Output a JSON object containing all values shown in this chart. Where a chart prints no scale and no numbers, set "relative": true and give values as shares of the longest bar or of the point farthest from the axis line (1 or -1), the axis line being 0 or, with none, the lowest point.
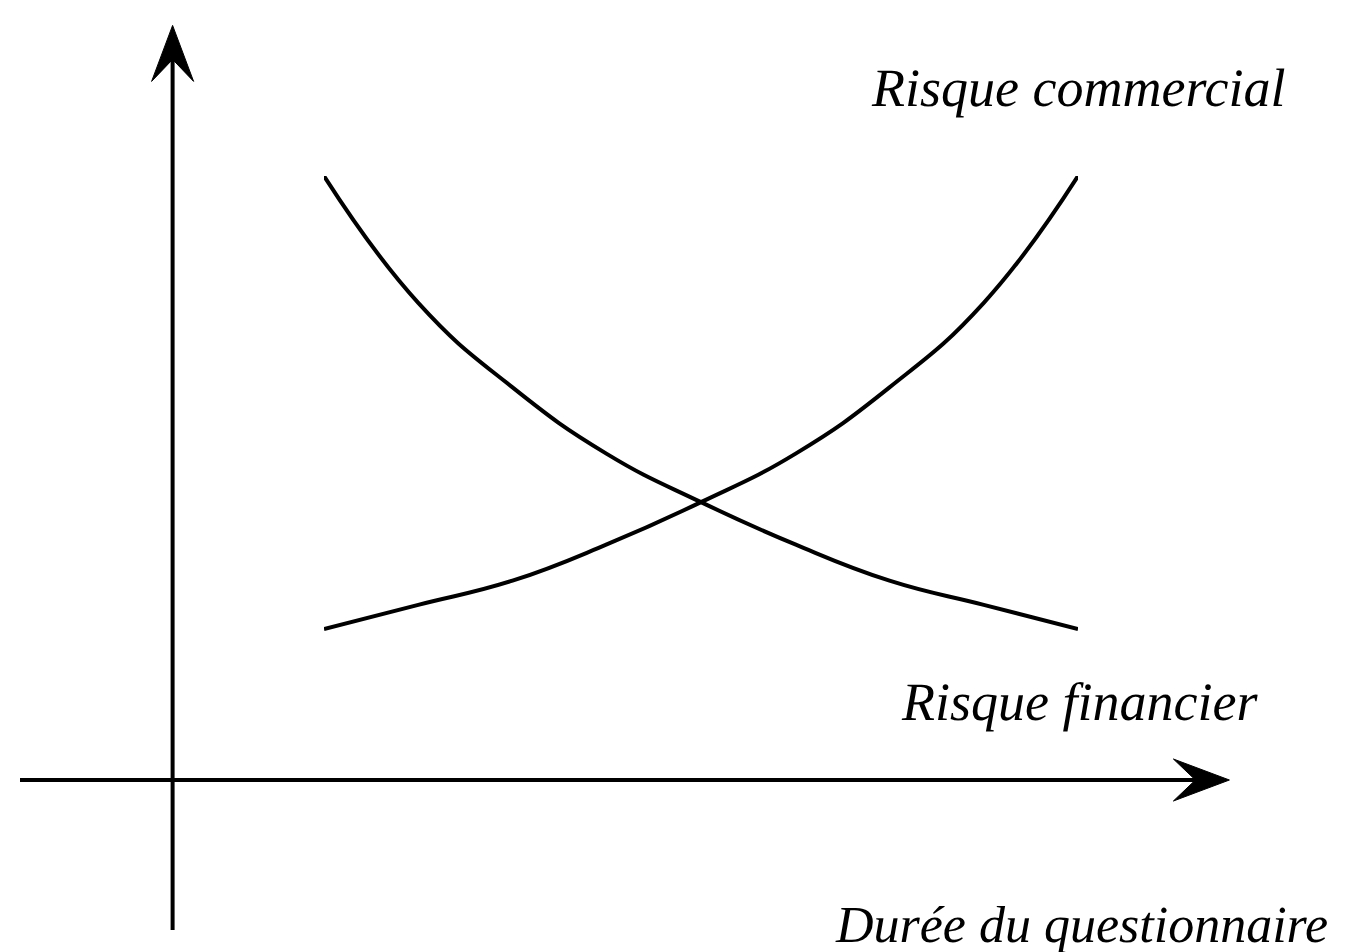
{
  "chart_data": {
    "type": "line",
    "relative": true,
    "xlabel": "Durée du questionnaire",
    "legend": false,
    "categories": [
      null,
      null,
      null,
      null,
      null,
      null,
      null,
      null,
      null
    ],
    "series": [
      {
        "name": "Risque commercial",
        "color": "#000000",
        "values": [
          0.25,
          0.29,
          0.33,
          0.39,
          0.46,
          0.54,
          0.65,
          0.79,
          1.0
        ]
      },
      {
        "name": "Risque financier",
        "color": "#000000",
        "values": [
          1.0,
          0.79,
          0.65,
          0.54,
          0.46,
          0.39,
          0.33,
          0.29,
          0.25
        ]
      }
    ]
  }
}
